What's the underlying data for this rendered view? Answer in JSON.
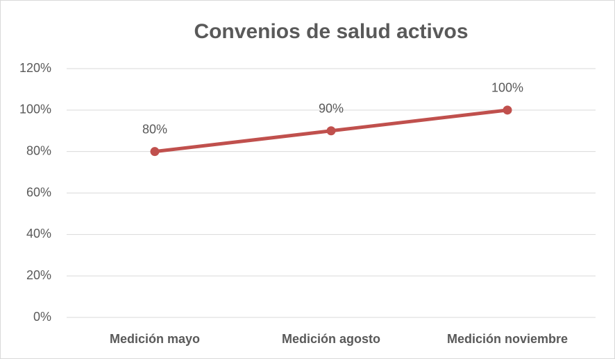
{
  "chart_data": {
    "type": "line",
    "title": "Convenios de salud activos",
    "categories": [
      "Medición mayo",
      "Medición agosto",
      "Medición noviembre"
    ],
    "series": [
      {
        "name": "Convenios de salud activos",
        "color": "#c0504d",
        "values": [
          80,
          90,
          100
        ],
        "value_labels": [
          "80%",
          "90%",
          "100%"
        ]
      }
    ],
    "ylim": [
      0,
      120
    ],
    "yticks": [
      {
        "value": 0,
        "label": "0%"
      },
      {
        "value": 20,
        "label": "20%"
      },
      {
        "value": 40,
        "label": "40%"
      },
      {
        "value": 60,
        "label": "60%"
      },
      {
        "value": 80,
        "label": "80%"
      },
      {
        "value": 100,
        "label": "100%"
      },
      {
        "value": 120,
        "label": "120%"
      }
    ],
    "grid": true,
    "legend": false
  }
}
